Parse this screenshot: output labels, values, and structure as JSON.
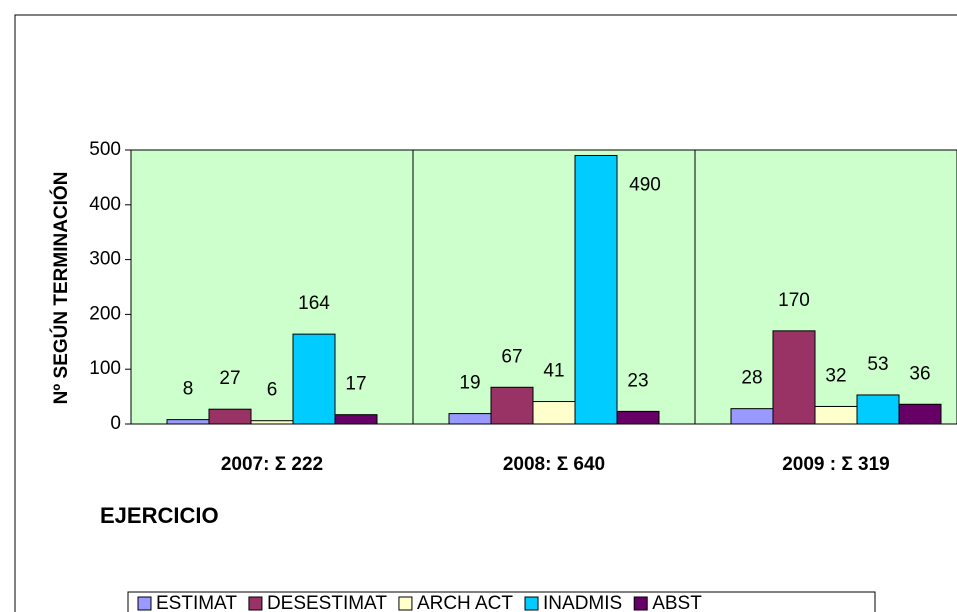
{
  "chart_data": {
    "type": "bar",
    "categories": [
      "2007: Σ 222",
      "2008: Σ 640",
      "2009 : Σ 319"
    ],
    "x_label": "EJERCICIO",
    "y_label": "Nº SEGÚN TERMINACIÓN",
    "series": [
      {
        "name": "ESTIMAT",
        "color": "#9999ff",
        "values": [
          8,
          19,
          28
        ]
      },
      {
        "name": "DESESTIMAT",
        "color": "#993366",
        "values": [
          27,
          67,
          170
        ]
      },
      {
        "name": "ARCH ACT",
        "color": "#ffffcc",
        "values": [
          6,
          41,
          32
        ]
      },
      {
        "name": "INADMIS",
        "color": "#00ccff",
        "values": [
          164,
          490,
          53
        ]
      },
      {
        "name": "ABST",
        "color": "#660066",
        "values": [
          17,
          23,
          36
        ]
      }
    ],
    "ylim": [
      0,
      500
    ],
    "yticks": [
      0,
      100,
      200,
      300,
      400,
      500
    ],
    "plot_background": "#ccffcc",
    "legend": "bottom"
  }
}
